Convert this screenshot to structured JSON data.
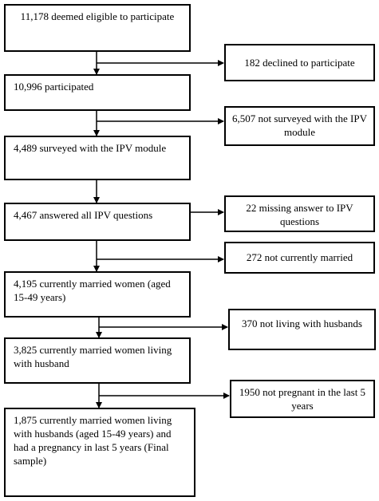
{
  "flowchart": {
    "main_steps": [
      {
        "id": "eligible",
        "text": "11,178 deemed eligible to participate"
      },
      {
        "id": "participated",
        "text": "10,996 participated"
      },
      {
        "id": "surveyed",
        "text": "4,489 surveyed with the IPV module"
      },
      {
        "id": "answered",
        "text": "4,467 answered all IPV questions"
      },
      {
        "id": "married",
        "text": "4,195 currently married women (aged 15-49 years)"
      },
      {
        "id": "living",
        "text": "3,825 currently married women living with husband"
      },
      {
        "id": "final",
        "text": "1,875 currently married women living with husbands (aged 15-49 years) and had a pregnancy in last 5 years (Final sample)"
      }
    ],
    "exclusions": [
      {
        "id": "declined",
        "text": "182 declined to participate"
      },
      {
        "id": "not-surveyed",
        "text": "6,507 not surveyed with the IPV module"
      },
      {
        "id": "missing",
        "text": "22 missing answer to IPV questions"
      },
      {
        "id": "not-married",
        "text": "272 not currently married"
      },
      {
        "id": "not-living",
        "text": "370 not living with husbands"
      },
      {
        "id": "not-pregnant",
        "text": "1950 not pregnant in the last 5 years"
      }
    ]
  }
}
